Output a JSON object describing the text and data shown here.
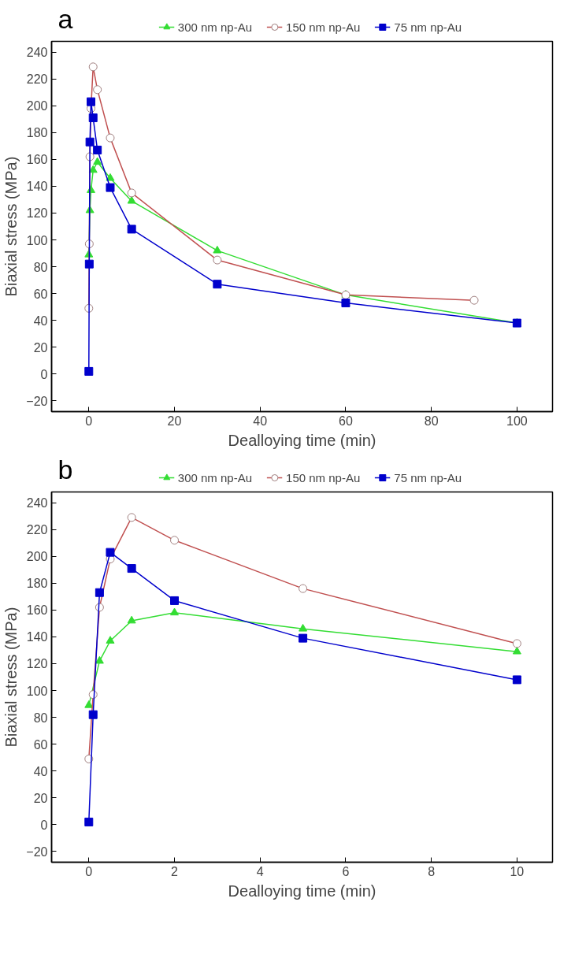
{
  "chart_data": [
    {
      "type": "line",
      "title": "a",
      "xlabel": "Dealloying time (min)",
      "ylabel": "Biaxial stress (MPa)",
      "xlim": [
        -8.7,
        108.3
      ],
      "xticks": [
        0,
        20,
        40,
        60,
        80,
        100
      ],
      "ylim": [
        -28,
        248
      ],
      "yticks": [
        -20,
        0,
        20,
        40,
        60,
        80,
        100,
        120,
        140,
        160,
        180,
        200,
        220,
        240
      ],
      "grid": false,
      "legend": "top",
      "series": [
        {
          "name": "300 nm np-Au",
          "color": "#33dd33",
          "marker": "triangle",
          "x": [
            0,
            0.25,
            0.5,
            1,
            2,
            5,
            10,
            30,
            60,
            100
          ],
          "values": [
            89,
            122,
            137,
            152,
            158,
            146,
            129,
            92,
            59,
            38
          ]
        },
        {
          "name": "150 nm np-Au",
          "color": "#c05050",
          "marker": "circle",
          "x": [
            0,
            0.1,
            0.25,
            0.5,
            1,
            2,
            5,
            10,
            30,
            60,
            90
          ],
          "values": [
            49,
            97,
            162,
            198,
            229,
            212,
            176,
            135,
            85,
            59,
            55
          ]
        },
        {
          "name": "75 nm np-Au",
          "color": "#0000cc",
          "marker": "square",
          "x": [
            0,
            0.1,
            0.25,
            0.5,
            1,
            2,
            5,
            10,
            30,
            60,
            100
          ],
          "values": [
            2,
            82,
            173,
            203,
            191,
            167,
            139,
            108,
            67,
            53,
            38
          ]
        }
      ]
    },
    {
      "type": "line",
      "title": "b",
      "xlabel": "Dealloying time (min)",
      "ylabel": "Biaxial stress (MPa)",
      "xlim": [
        -0.87,
        10.83
      ],
      "xticks": [
        0,
        2,
        4,
        6,
        8,
        10
      ],
      "ylim": [
        -28,
        248
      ],
      "yticks": [
        -20,
        0,
        20,
        40,
        60,
        80,
        100,
        120,
        140,
        160,
        180,
        200,
        220,
        240
      ],
      "grid": false,
      "legend": "top",
      "series": [
        {
          "name": "300 nm np-Au",
          "color": "#33dd33",
          "marker": "triangle",
          "x": [
            0,
            0.25,
            0.5,
            1,
            2,
            5,
            10
          ],
          "values": [
            89,
            122,
            137,
            152,
            158,
            146,
            129
          ]
        },
        {
          "name": "150 nm np-Au",
          "color": "#c05050",
          "marker": "circle",
          "x": [
            0,
            0.1,
            0.25,
            0.5,
            1,
            2,
            5,
            10
          ],
          "values": [
            49,
            97,
            162,
            198,
            229,
            212,
            176,
            135
          ]
        },
        {
          "name": "75 nm np-Au",
          "color": "#0000cc",
          "marker": "square",
          "x": [
            0,
            0.1,
            0.25,
            0.5,
            1,
            2,
            5,
            10
          ],
          "values": [
            2,
            82,
            173,
            203,
            191,
            167,
            139,
            108
          ]
        }
      ]
    }
  ]
}
